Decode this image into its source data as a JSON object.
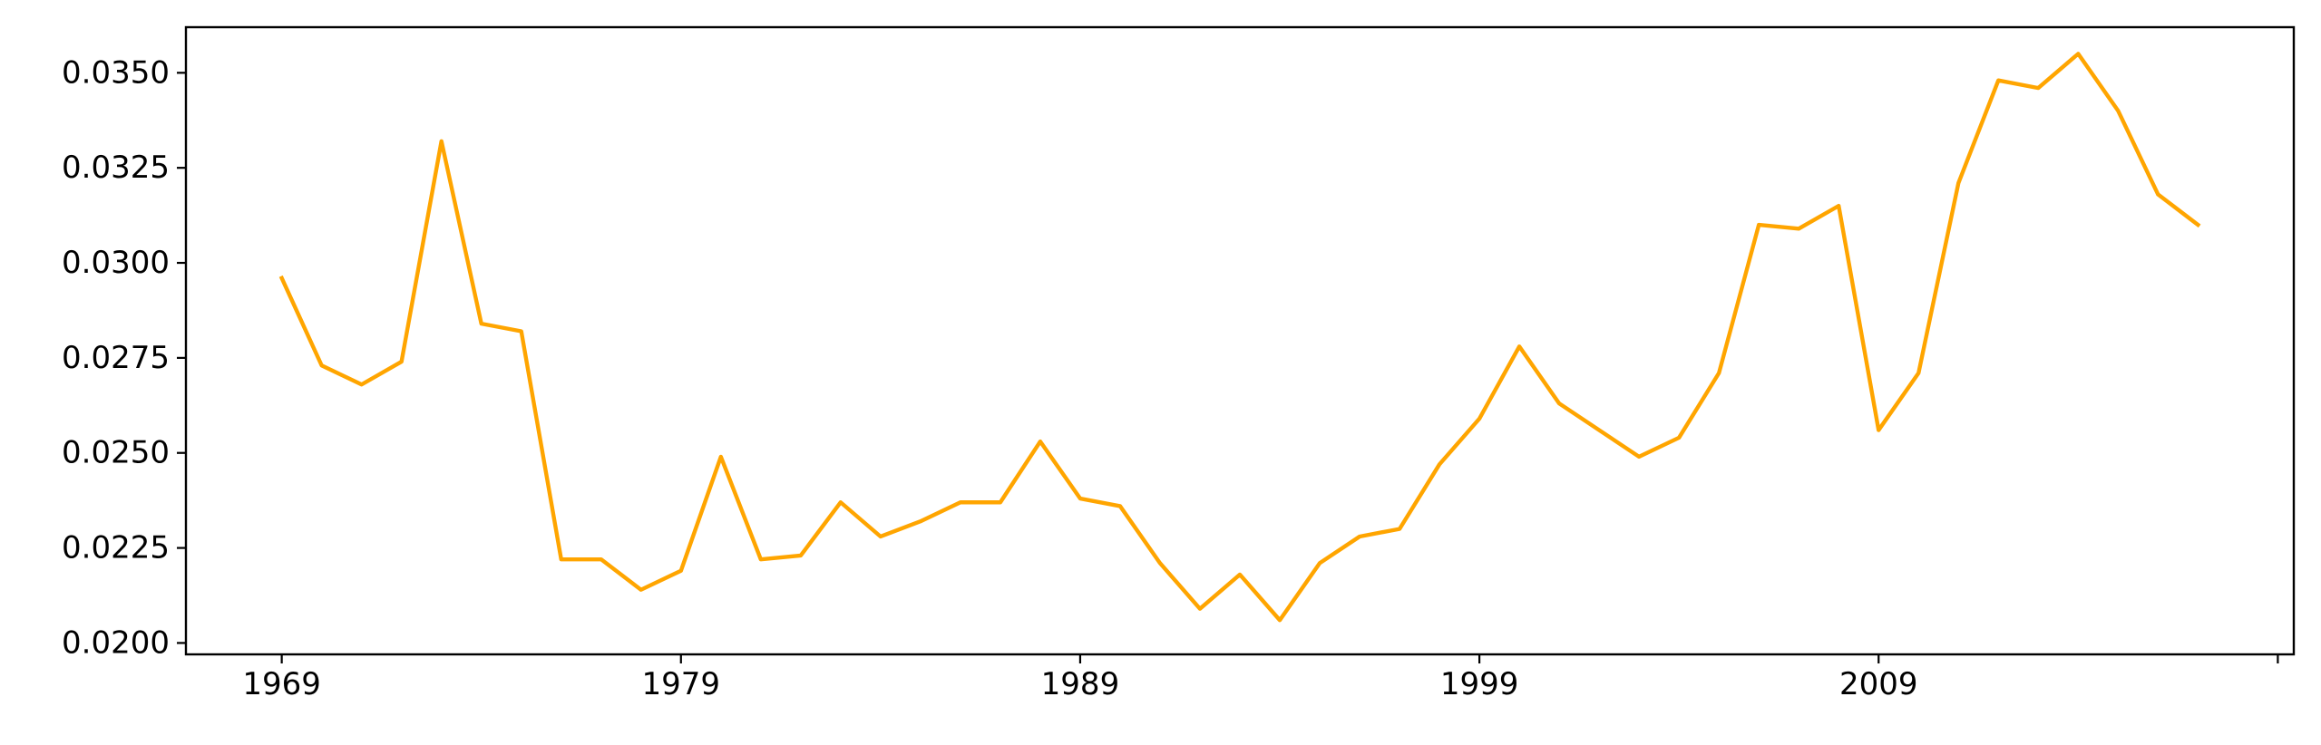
{
  "colors": {
    "series": "#FFA500",
    "axes": "#000000",
    "background": "#FFFFFF"
  },
  "chart_data": {
    "type": "line",
    "title": "",
    "xlabel": "",
    "ylabel": "",
    "grid": false,
    "legend": "none",
    "xlim": [
      1966.6,
      2019.4
    ],
    "ylim": [
      0.0197,
      0.0362
    ],
    "x_ticks": [
      1969,
      1979,
      1989,
      1999,
      2009,
      2019
    ],
    "x_tick_labels": [
      "1969",
      "1979",
      "1989",
      "1999",
      "2009",
      ""
    ],
    "y_ticks": [
      0.02,
      0.0225,
      0.025,
      0.0275,
      0.03,
      0.0325,
      0.035
    ],
    "y_tick_labels": [
      "0.0200",
      "0.0225",
      "0.0250",
      "0.0275",
      "0.0300",
      "0.0325",
      "0.0350"
    ],
    "series": [
      {
        "color": "#FFA500",
        "x": [
          1969,
          1970,
          1971,
          1972,
          1973,
          1974,
          1975,
          1976,
          1977,
          1978,
          1979,
          1980,
          1981,
          1982,
          1983,
          1984,
          1985,
          1986,
          1987,
          1988,
          1989,
          1990,
          1991,
          1992,
          1993,
          1994,
          1995,
          1996,
          1997,
          1998,
          1999,
          2000,
          2001,
          2002,
          2003,
          2004,
          2005,
          2006,
          2007,
          2008,
          2009,
          2010,
          2011,
          2012,
          2013,
          2014,
          2015,
          2016,
          2017
        ],
        "y": [
          0.0296,
          0.0273,
          0.0268,
          0.0274,
          0.0332,
          0.0284,
          0.0282,
          0.0222,
          0.0222,
          0.0214,
          0.0219,
          0.0249,
          0.0222,
          0.0223,
          0.0237,
          0.0228,
          0.0232,
          0.0237,
          0.0237,
          0.0253,
          0.0238,
          0.0236,
          0.0221,
          0.0209,
          0.0218,
          0.0206,
          0.0221,
          0.0228,
          0.023,
          0.0247,
          0.0259,
          0.0278,
          0.0263,
          0.0256,
          0.0249,
          0.0254,
          0.0271,
          0.031,
          0.0309,
          0.0315,
          0.0256,
          0.0271,
          0.0321,
          0.0348,
          0.0346,
          0.0355,
          0.034,
          0.0318,
          0.031
        ]
      }
    ]
  }
}
